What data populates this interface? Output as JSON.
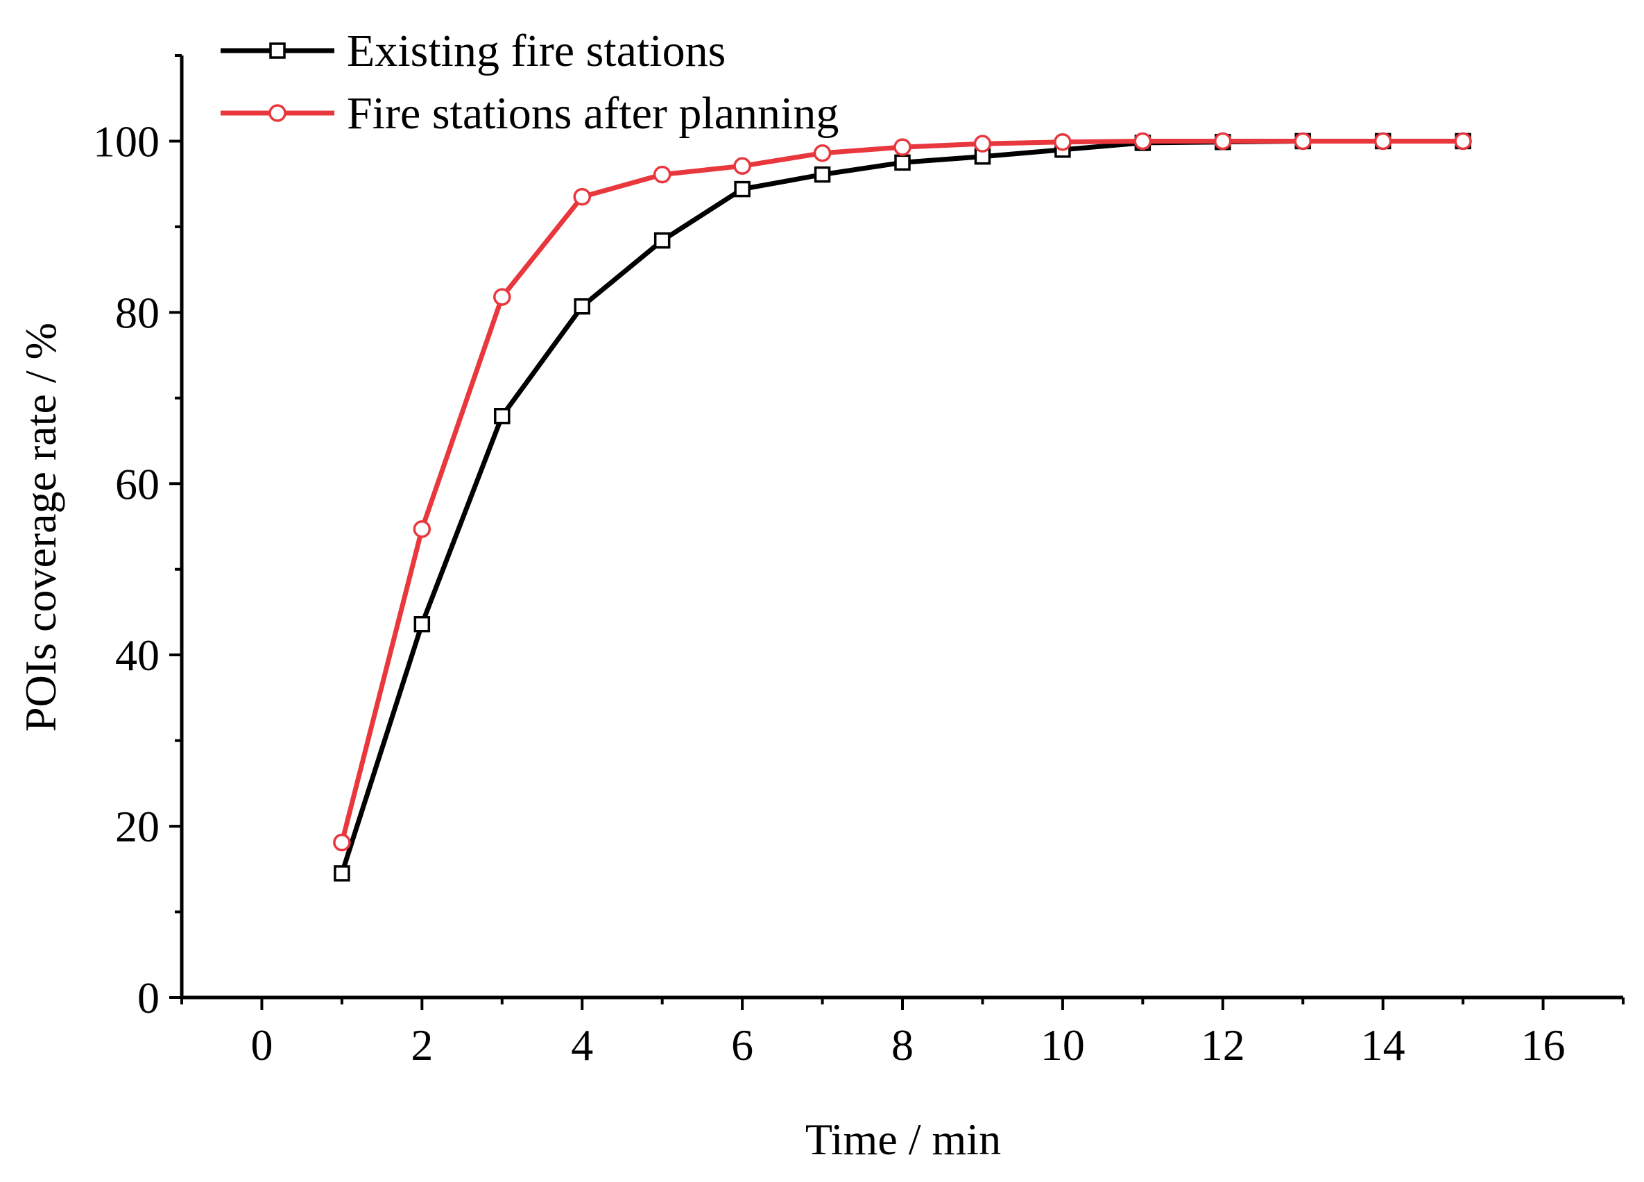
{
  "chart_data": {
    "type": "line",
    "title": "",
    "xlabel": "Time / min",
    "ylabel": "POIs coverage rate / %",
    "xlim": [
      -1,
      17
    ],
    "ylim": [
      0,
      110
    ],
    "x_ticks": [
      0,
      2,
      4,
      6,
      8,
      10,
      12,
      14,
      16
    ],
    "y_ticks": [
      0,
      20,
      40,
      60,
      80,
      100
    ],
    "grid": false,
    "legend_position": "top-left",
    "x": [
      1,
      2,
      3,
      4,
      5,
      6,
      7,
      8,
      9,
      10,
      11,
      12,
      13,
      14,
      15
    ],
    "series": [
      {
        "name": "Existing fire stations",
        "color": "#000000",
        "marker": "square",
        "values": [
          14.5,
          43.6,
          67.9,
          80.7,
          88.4,
          94.4,
          96.1,
          97.5,
          98.2,
          99.0,
          99.8,
          99.9,
          100,
          100,
          100
        ]
      },
      {
        "name": "Fire stations after planning",
        "color": "#e8373d",
        "marker": "circle",
        "values": [
          18.1,
          54.7,
          81.8,
          93.5,
          96.1,
          97.1,
          98.6,
          99.3,
          99.7,
          99.9,
          100,
          100,
          100,
          100,
          100
        ]
      }
    ]
  }
}
